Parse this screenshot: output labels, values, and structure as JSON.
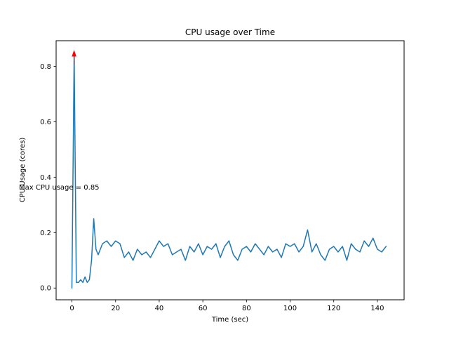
{
  "chart_data": {
    "type": "line",
    "title": "CPU usage over Time",
    "xlabel": "Time (sec)",
    "ylabel": "CPU Usage (cores)",
    "line_color": "#1f77b4",
    "axis_color": "#000000",
    "background_color": "#ffffff",
    "grid": false,
    "legend": null,
    "xlim": [
      -7.25,
      152.25
    ],
    "ylim": [
      -0.0425,
      0.8925
    ],
    "xticks": [
      0,
      20,
      40,
      60,
      80,
      100,
      120,
      140
    ],
    "xtick_labels": [
      "0",
      "20",
      "40",
      "60",
      "80",
      "100",
      "120",
      "140"
    ],
    "yticks": [
      0.0,
      0.2,
      0.4,
      0.6,
      0.8
    ],
    "ytick_labels": [
      "0.0",
      "0.2",
      "0.4",
      "0.6",
      "0.8"
    ],
    "x": [
      0,
      1,
      2,
      3,
      4,
      5,
      6,
      7,
      8,
      9,
      10,
      11,
      12,
      14,
      16,
      18,
      20,
      22,
      24,
      26,
      28,
      30,
      32,
      34,
      36,
      38,
      40,
      42,
      44,
      46,
      48,
      50,
      52,
      54,
      56,
      58,
      60,
      62,
      64,
      66,
      68,
      70,
      72,
      74,
      76,
      78,
      80,
      82,
      84,
      86,
      88,
      90,
      92,
      94,
      96,
      98,
      100,
      102,
      104,
      106,
      108,
      110,
      112,
      114,
      116,
      118,
      120,
      122,
      124,
      126,
      128,
      130,
      132,
      134,
      136,
      138,
      140,
      142,
      144
    ],
    "y": [
      0.0,
      0.85,
      0.02,
      0.02,
      0.03,
      0.02,
      0.04,
      0.02,
      0.03,
      0.1,
      0.25,
      0.14,
      0.12,
      0.16,
      0.17,
      0.15,
      0.17,
      0.16,
      0.11,
      0.13,
      0.1,
      0.14,
      0.12,
      0.13,
      0.11,
      0.14,
      0.17,
      0.15,
      0.16,
      0.12,
      0.13,
      0.14,
      0.1,
      0.15,
      0.13,
      0.16,
      0.12,
      0.15,
      0.14,
      0.16,
      0.11,
      0.15,
      0.17,
      0.12,
      0.1,
      0.14,
      0.15,
      0.13,
      0.16,
      0.14,
      0.12,
      0.15,
      0.13,
      0.14,
      0.11,
      0.16,
      0.15,
      0.16,
      0.13,
      0.15,
      0.21,
      0.13,
      0.16,
      0.12,
      0.1,
      0.14,
      0.15,
      0.13,
      0.15,
      0.1,
      0.16,
      0.14,
      0.13,
      0.17,
      0.15,
      0.18,
      0.14,
      0.13,
      0.15
    ],
    "annotation": {
      "text": "Max CPU usage = 0.85",
      "color": "#ff0000",
      "target_x": 1,
      "target_y": 0.85
    }
  }
}
